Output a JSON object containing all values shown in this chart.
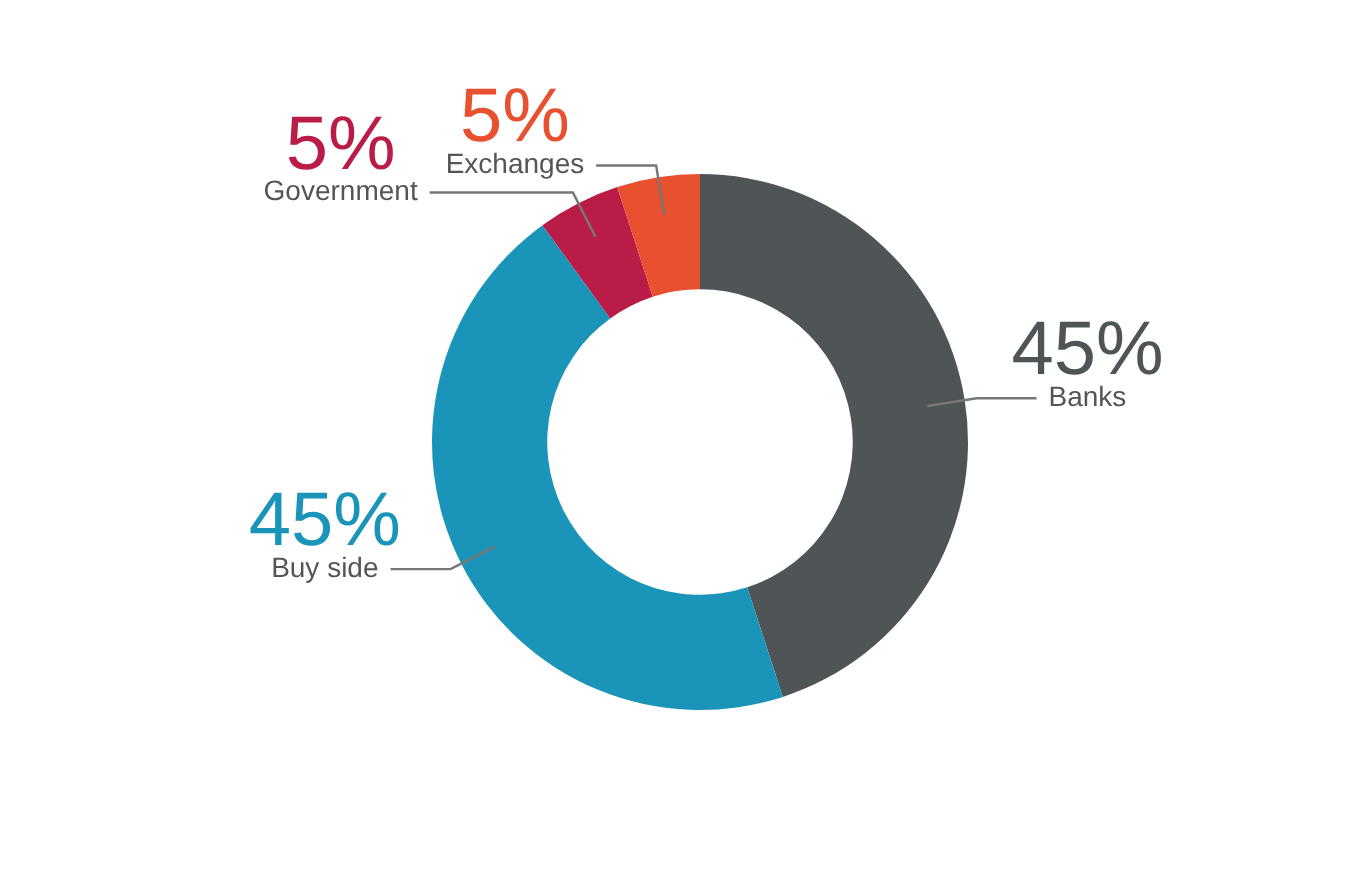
{
  "chart_data": {
    "type": "donut",
    "categories": [
      "Banks",
      "Buy side",
      "Government",
      "Exchanges"
    ],
    "values": [
      45,
      45,
      5,
      5
    ],
    "colors": [
      "#4f5457",
      "#1a95b9",
      "#b81c47",
      "#e8502f"
    ],
    "value_labels": [
      "45%",
      "45%",
      "5%",
      "5%"
    ],
    "legend": false
  }
}
